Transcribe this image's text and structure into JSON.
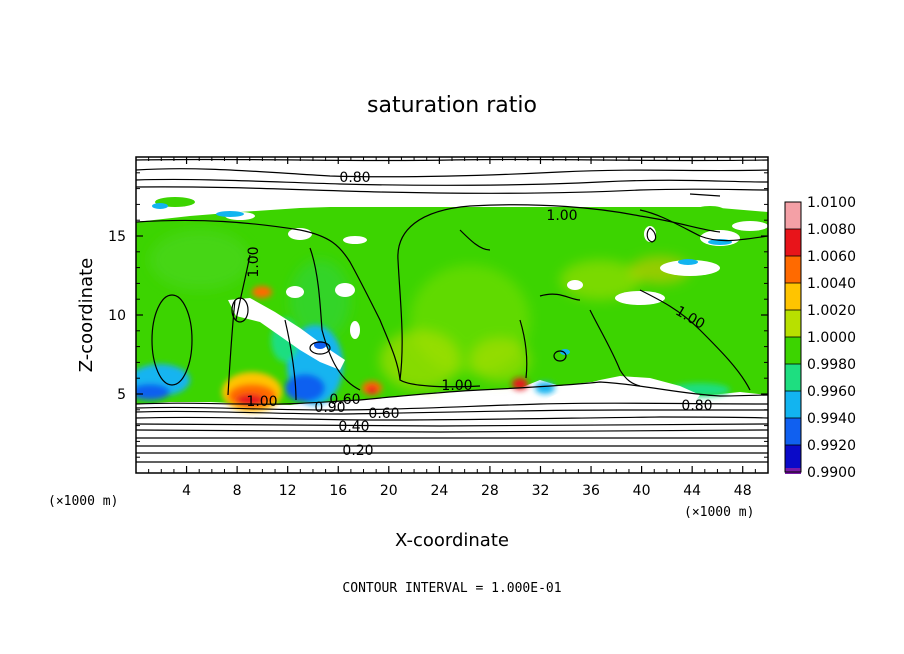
{
  "chart_data": {
    "type": "heatmap",
    "title": "saturation ratio",
    "xlabel": "X-coordinate",
    "ylabel": "Z-coordinate",
    "x_unit": "(×1000 m)",
    "y_unit": "(×1000 m)",
    "xlim": [
      0,
      50
    ],
    "ylim": [
      0,
      20
    ],
    "x_ticks": [
      4,
      8,
      12,
      16,
      20,
      24,
      28,
      32,
      36,
      40,
      44,
      48
    ],
    "y_ticks": [
      5,
      10,
      15
    ],
    "footer": "CONTOUR INTERVAL = 1.000E-01",
    "colorbar": {
      "levels": [
        "1.0100",
        "1.0080",
        "1.0060",
        "1.0040",
        "1.0020",
        "1.0000",
        "0.9980",
        "0.9960",
        "0.9940",
        "0.9920",
        "0.9900"
      ],
      "colors": [
        "#f4a0a6",
        "#e8141a",
        "#ff6a00",
        "#ffc400",
        "#b8e000",
        "#3cd400",
        "#1ede80",
        "#12b4f0",
        "#1060f0",
        "#0a0ac8",
        "#7a1aa8"
      ]
    },
    "contours": [
      {
        "label": "0.80",
        "z": 18.7
      },
      {
        "label": "1.00",
        "z": 16.2
      },
      {
        "label": "1.00",
        "z": 12.0
      },
      {
        "label": "1.00",
        "z": 9.8
      },
      {
        "label": "1.00",
        "z": 5.3
      },
      {
        "label": "1.00",
        "z": 4.4
      },
      {
        "label": "0.90",
        "z": 4.0
      },
      {
        "label": "0.60",
        "z": 4.3
      },
      {
        "label": "0.60",
        "z": 3.6
      },
      {
        "label": "0.40",
        "z": 2.9
      },
      {
        "label": "0.20",
        "z": 1.5
      },
      {
        "label": "0.80",
        "z": 4.3
      }
    ]
  }
}
